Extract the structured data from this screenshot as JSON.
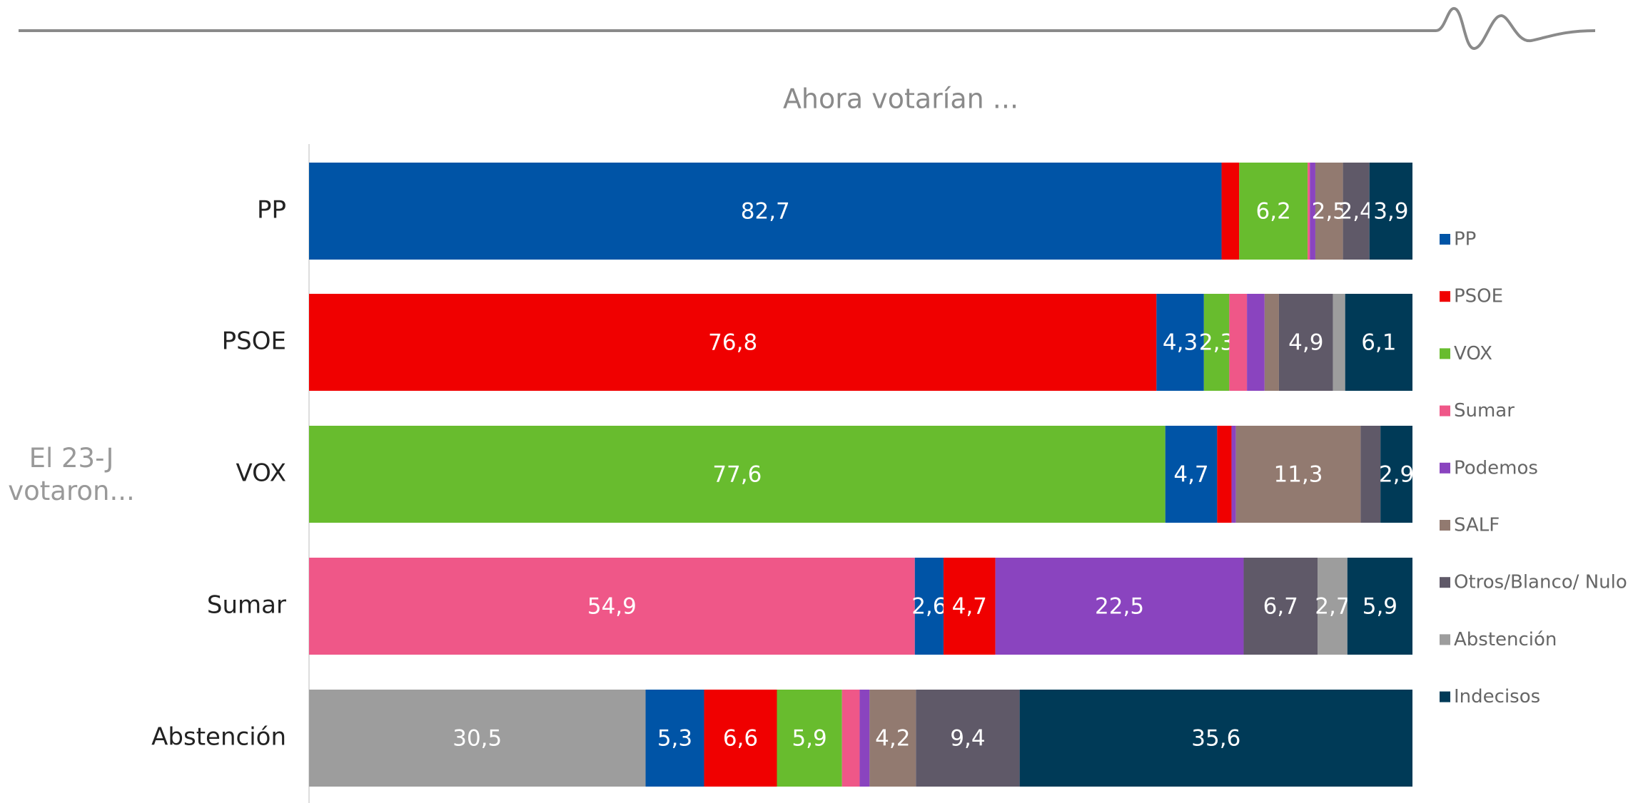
{
  "chart_data": {
    "type": "stacked-bar-horizontal",
    "title": "Ahora votarían ...",
    "y_label": "El 23-J votaron...",
    "categories": [
      "PP",
      "PSOE",
      "VOX",
      "Sumar",
      "Abstención"
    ],
    "xlim": [
      0,
      100
    ],
    "legend": "right",
    "series": [
      {
        "name": "PP",
        "color": "#0054a6",
        "values": [
          82.7,
          4.3,
          4.7,
          2.6,
          5.3
        ],
        "value_labels": [
          "82,7",
          "4,3",
          "4,7",
          "2,6",
          "5,3"
        ]
      },
      {
        "name": "PSOE",
        "color": "#f00000",
        "values": [
          1.6,
          76.8,
          1.3,
          4.7,
          6.6
        ],
        "value_labels": [
          null,
          "76,8",
          null,
          "4,7",
          "6,6"
        ]
      },
      {
        "name": "VOX",
        "color": "#68bc2e",
        "values": [
          6.2,
          2.3,
          77.6,
          0,
          5.9
        ],
        "value_labels": [
          "6,2",
          "2,3",
          "77,6",
          null,
          "5,9"
        ]
      },
      {
        "name": "Sumar",
        "color": "#ef5788",
        "values": [
          0.2,
          1.6,
          0,
          54.9,
          1.6
        ],
        "value_labels": [
          null,
          null,
          null,
          "54,9",
          null
        ]
      },
      {
        "name": "Podemos",
        "color": "#8a44bf",
        "values": [
          0.5,
          1.6,
          0.4,
          22.5,
          0.9
        ],
        "value_labels": [
          null,
          null,
          null,
          "22,5",
          null
        ]
      },
      {
        "name": "SALF",
        "color": "#927a70",
        "values": [
          2.5,
          1.3,
          11.3,
          0,
          4.2
        ],
        "value_labels": [
          "2,5",
          null,
          "11,3",
          null,
          "4,2"
        ]
      },
      {
        "name": "Otros/Blanco/ Nulo",
        "color": "#5f5968",
        "values": [
          2.4,
          4.9,
          1.8,
          6.7,
          9.4
        ],
        "value_labels": [
          "2,4",
          "4,9",
          null,
          "6,7",
          "9,4"
        ]
      },
      {
        "name": "Abstención",
        "color": "#9d9d9d",
        "values": [
          0,
          1.1,
          0,
          2.7,
          30.5
        ],
        "value_labels": [
          null,
          null,
          null,
          "2,7",
          "30,5"
        ]
      },
      {
        "name": "Indecisos",
        "color": "#003a57",
        "values": [
          3.9,
          6.1,
          2.9,
          5.9,
          35.6
        ],
        "value_labels": [
          "3,9",
          "6,1",
          "2,9",
          "5,9",
          "35,6"
        ]
      }
    ]
  }
}
